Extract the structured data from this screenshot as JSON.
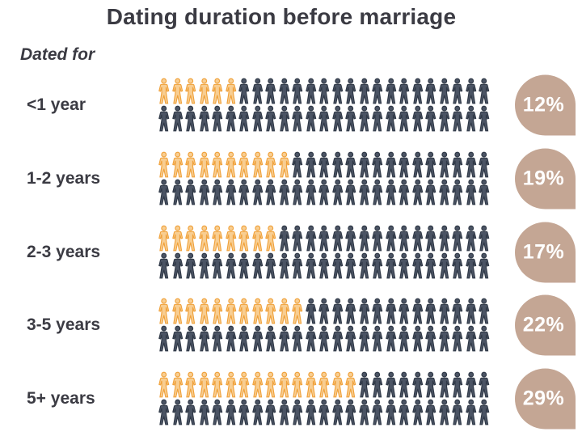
{
  "title": "Dating duration before marriage",
  "subtitle": "Dated for",
  "colors": {
    "text": "#3b3b43",
    "hl_stroke": "#f0a23c",
    "hl_fill": "#f8ce92",
    "base_stroke": "#303947",
    "base_fill": "#4b5464",
    "badge": "#c4a694",
    "badge_text": "#ffffff",
    "background": "#ffffff"
  },
  "chart_data": {
    "type": "bar",
    "style": "pictograph",
    "title": "Dating duration before marriage",
    "xlabel": "Dated for",
    "unit": "percent",
    "categories": [
      "<1 year",
      "1-2 years",
      "2-3 years",
      "3-5 years",
      "5+ years"
    ],
    "values": [
      12,
      19,
      17,
      22,
      29
    ],
    "value_labels": [
      "12%",
      "19%",
      "17%",
      "22%",
      "29%"
    ],
    "icons_per_line": 25,
    "icon_lines_per_category": 2,
    "icons_total_per_category": 50,
    "percent_per_icon": 2,
    "highlighted_icon_counts": [
      6,
      10,
      9,
      11,
      15
    ],
    "legend_position": "none",
    "grid": false
  }
}
